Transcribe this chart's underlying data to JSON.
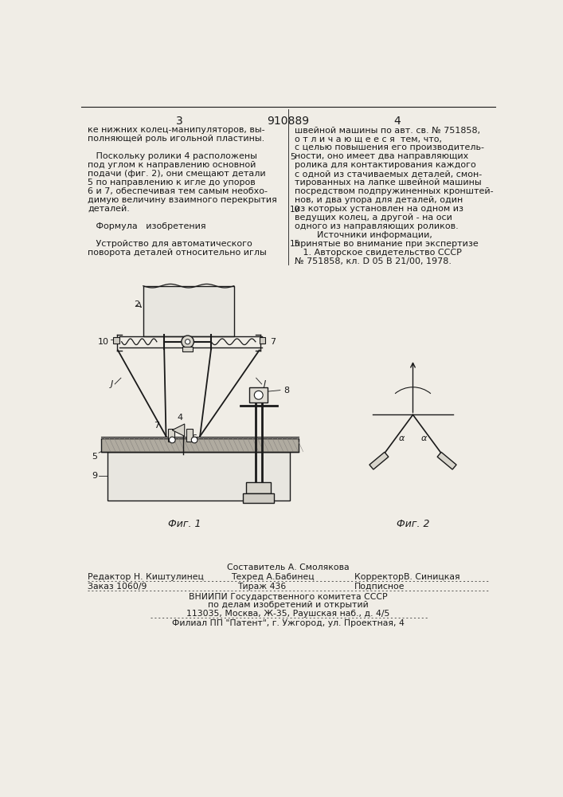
{
  "patent_number": "910889",
  "page_left": "3",
  "page_right": "4",
  "bg_color": "#f0ede6",
  "text_color": "#1a1a1a",
  "col_left_lines": [
    "ке нижних колец-манипуляторов, вы-",
    "полняющей роль игольной пластины.",
    "",
    "   Поскольку ролики 4 расположены",
    "под углом к направлению основной",
    "подачи (фиг. 2), они смещают детали",
    "5 по направлению к игле до упоров",
    "6 и 7, обеспечивая тем самым необхо-",
    "димую величину взаимного перекрытия",
    "деталей.",
    "",
    "   Формула   изобретения",
    "",
    "   Устройство для автоматического",
    "поворота деталей относительно иглы"
  ],
  "col_right_lines": [
    "швейной машины по авт. св. № 751858,",
    "о т л и ч а ю щ е е с я  тем, что,",
    "с целью повышения его производитель-",
    "ности, оно имеет два направляющих",
    "ролика для контактирования каждого",
    "с одной из стачиваемых деталей, смон-",
    "тированных на лапке швейной машины",
    "посредством подпружиненных кронштей-",
    "нов, и два упора для деталей, один",
    "из которых установлен на одном из",
    "ведущих колец, а другой - на оси",
    "одного из направляющих роликов.",
    "        Источники информации,",
    "принятые во внимание при экспертизе",
    "   1. Авторское свидетельство СССР",
    "№ 751858, кл. D 05 B 21/00, 1978."
  ],
  "fig1_caption": "Фиг. 1",
  "fig2_caption": "Фиг. 2",
  "footer_line0": "Составитель А. Смолякова",
  "footer_line1": "Редактор Н. Киштулинец    Техред А.Бабинец  '1'   КорректорВ. Синицкая",
  "footer_line2": "Заказ 1060/9                    Тираж 436                    Подписное",
  "footer_line3": "ВНИИПИ Государственного комитета СССР",
  "footer_line4": "по делам изобретений и открытий",
  "footer_line5": "113035, Москва, Ж-35, Раушская наб., д. 4/5",
  "footer_line6": "Филиал ПП \"Патент\", г. Ужгород, ул. Проектная, 4"
}
